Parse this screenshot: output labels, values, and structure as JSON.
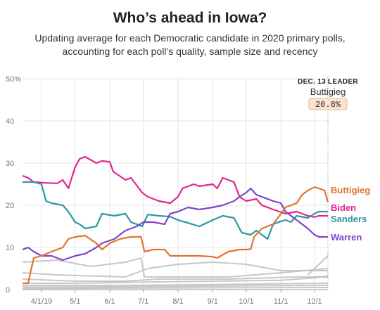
{
  "title": "Who’s ahead in Iowa?",
  "subtitle": "Updating average for each Democratic candidate in 2020 primary polls, accounting for each poll’s quality, sample size and recency",
  "leader": {
    "heading": "DEC. 13 LEADER",
    "name": "Buttigieg",
    "value": "20.8%"
  },
  "colors": {
    "Buttigieg": "#e1742f",
    "Biden": "#e1258e",
    "Sanders": "#2b98a3",
    "Warren": "#7b46c9",
    "others": "#bdbdbd",
    "grid": "#e4e4e4",
    "leader_box": "#fbe2d1"
  },
  "chart_data": {
    "type": "line",
    "x_axis": {
      "min": "2019-03-15",
      "max": "2019-12-13",
      "tick_dates": [
        "2019-04-01",
        "2019-05-01",
        "2019-06-01",
        "2019-07-01",
        "2019-08-01",
        "2019-09-01",
        "2019-10-01",
        "2019-11-01",
        "2019-12-01"
      ],
      "tick_labels": [
        "4/1/19",
        "5/1",
        "6/1",
        "7/1",
        "8/1",
        "9/1",
        "10/1",
        "11/1",
        "12/1"
      ]
    },
    "y_axis": {
      "min": 0,
      "max": 50,
      "ticks": [
        0,
        10,
        20,
        30,
        40,
        50
      ],
      "tick_labels": [
        "0",
        "10",
        "20",
        "30",
        "40",
        "50%"
      ]
    },
    "grid": true,
    "series": [
      {
        "name": "Biden",
        "points": [
          [
            "2019-03-15",
            27
          ],
          [
            "2019-03-20",
            26.5
          ],
          [
            "2019-03-25",
            25.5
          ],
          [
            "2019-04-05",
            25.3
          ],
          [
            "2019-04-15",
            25.2
          ],
          [
            "2019-04-20",
            26
          ],
          [
            "2019-04-25",
            24
          ],
          [
            "2019-05-01",
            29
          ],
          [
            "2019-05-05",
            31
          ],
          [
            "2019-05-10",
            31.5
          ],
          [
            "2019-05-20",
            30
          ],
          [
            "2019-05-25",
            30.5
          ],
          [
            "2019-06-01",
            30.3
          ],
          [
            "2019-06-04",
            28
          ],
          [
            "2019-06-15",
            26
          ],
          [
            "2019-06-20",
            26.5
          ],
          [
            "2019-06-30",
            23
          ],
          [
            "2019-07-05",
            22
          ],
          [
            "2019-07-15",
            21
          ],
          [
            "2019-07-25",
            20.5
          ],
          [
            "2019-08-01",
            22
          ],
          [
            "2019-08-05",
            24
          ],
          [
            "2019-08-15",
            25
          ],
          [
            "2019-08-20",
            24.5
          ],
          [
            "2019-09-01",
            25
          ],
          [
            "2019-09-05",
            24
          ],
          [
            "2019-09-10",
            26.5
          ],
          [
            "2019-09-20",
            25.5
          ],
          [
            "2019-09-25",
            22
          ],
          [
            "2019-10-01",
            21
          ],
          [
            "2019-10-10",
            21.5
          ],
          [
            "2019-10-15",
            20
          ],
          [
            "2019-10-25",
            19
          ],
          [
            "2019-11-05",
            18
          ],
          [
            "2019-11-15",
            18.5
          ],
          [
            "2019-11-25",
            17.5
          ],
          [
            "2019-12-01",
            17.2
          ],
          [
            "2019-12-05",
            17.5
          ],
          [
            "2019-12-13",
            17.5
          ]
        ]
      },
      {
        "name": "Sanders",
        "points": [
          [
            "2019-03-15",
            25.5
          ],
          [
            "2019-03-25",
            25.5
          ],
          [
            "2019-04-01",
            25
          ],
          [
            "2019-04-05",
            21
          ],
          [
            "2019-04-10",
            20.5
          ],
          [
            "2019-04-20",
            20
          ],
          [
            "2019-04-25",
            18.5
          ],
          [
            "2019-05-01",
            16
          ],
          [
            "2019-05-05",
            15.5
          ],
          [
            "2019-05-10",
            14.5
          ],
          [
            "2019-05-20",
            15
          ],
          [
            "2019-05-25",
            18
          ],
          [
            "2019-06-05",
            17.5
          ],
          [
            "2019-06-15",
            18
          ],
          [
            "2019-06-20",
            16
          ],
          [
            "2019-06-30",
            15
          ],
          [
            "2019-07-05",
            17.8
          ],
          [
            "2019-07-15",
            17.5
          ],
          [
            "2019-07-25",
            17.3
          ],
          [
            "2019-08-01",
            16.5
          ],
          [
            "2019-08-10",
            15.8
          ],
          [
            "2019-08-20",
            15
          ],
          [
            "2019-09-01",
            16.5
          ],
          [
            "2019-09-10",
            17.5
          ],
          [
            "2019-09-20",
            17
          ],
          [
            "2019-09-27",
            13.5
          ],
          [
            "2019-10-05",
            13
          ],
          [
            "2019-10-10",
            14
          ],
          [
            "2019-10-15",
            13
          ],
          [
            "2019-10-20",
            12
          ],
          [
            "2019-10-25",
            15.5
          ],
          [
            "2019-11-01",
            16.2
          ],
          [
            "2019-11-05",
            16.5
          ],
          [
            "2019-11-10",
            16
          ],
          [
            "2019-11-15",
            17.5
          ],
          [
            "2019-11-25",
            17
          ],
          [
            "2019-12-01",
            18
          ],
          [
            "2019-12-05",
            18.5
          ],
          [
            "2019-12-13",
            18.5
          ]
        ]
      },
      {
        "name": "Warren",
        "points": [
          [
            "2019-03-15",
            9.5
          ],
          [
            "2019-03-20",
            10
          ],
          [
            "2019-03-25",
            9
          ],
          [
            "2019-04-01",
            8
          ],
          [
            "2019-04-10",
            8
          ],
          [
            "2019-04-20",
            7
          ],
          [
            "2019-05-01",
            8
          ],
          [
            "2019-05-10",
            8.5
          ],
          [
            "2019-05-20",
            10
          ],
          [
            "2019-05-25",
            11
          ],
          [
            "2019-06-05",
            12
          ],
          [
            "2019-06-15",
            14
          ],
          [
            "2019-06-25",
            15
          ],
          [
            "2019-07-01",
            16
          ],
          [
            "2019-07-10",
            16
          ],
          [
            "2019-07-20",
            15.5
          ],
          [
            "2019-07-25",
            18
          ],
          [
            "2019-08-01",
            18.5
          ],
          [
            "2019-08-10",
            19.5
          ],
          [
            "2019-08-20",
            19
          ],
          [
            "2019-09-01",
            19.5
          ],
          [
            "2019-09-10",
            20
          ],
          [
            "2019-09-20",
            21
          ],
          [
            "2019-09-25",
            22
          ],
          [
            "2019-10-01",
            23
          ],
          [
            "2019-10-05",
            24
          ],
          [
            "2019-10-10",
            22.5
          ],
          [
            "2019-10-15",
            22
          ],
          [
            "2019-10-25",
            21
          ],
          [
            "2019-11-01",
            20.5
          ],
          [
            "2019-11-05",
            18.5
          ],
          [
            "2019-11-15",
            16.5
          ],
          [
            "2019-11-25",
            14.5
          ],
          [
            "2019-12-01",
            13
          ],
          [
            "2019-12-05",
            12.5
          ],
          [
            "2019-12-13",
            12.5
          ]
        ]
      },
      {
        "name": "Buttigieg",
        "points": [
          [
            "2019-03-15",
            1.5
          ],
          [
            "2019-03-20",
            1.5
          ],
          [
            "2019-03-25",
            7.5
          ],
          [
            "2019-04-01",
            8
          ],
          [
            "2019-04-10",
            9
          ],
          [
            "2019-04-20",
            10
          ],
          [
            "2019-04-25",
            12
          ],
          [
            "2019-05-01",
            12.5
          ],
          [
            "2019-05-10",
            12.8
          ],
          [
            "2019-05-20",
            11
          ],
          [
            "2019-05-25",
            9.5
          ],
          [
            "2019-06-01",
            11
          ],
          [
            "2019-06-10",
            12
          ],
          [
            "2019-06-20",
            12.5
          ],
          [
            "2019-06-29",
            12.5
          ],
          [
            "2019-07-02",
            9
          ],
          [
            "2019-07-10",
            9.5
          ],
          [
            "2019-07-20",
            9.5
          ],
          [
            "2019-07-25",
            8
          ],
          [
            "2019-08-10",
            8
          ],
          [
            "2019-08-20",
            8
          ],
          [
            "2019-09-01",
            7.8
          ],
          [
            "2019-09-05",
            7.5
          ],
          [
            "2019-09-15",
            9
          ],
          [
            "2019-09-25",
            9.5
          ],
          [
            "2019-10-01",
            9.5
          ],
          [
            "2019-10-05",
            9.6
          ],
          [
            "2019-10-08",
            12.5
          ],
          [
            "2019-10-15",
            14.5
          ],
          [
            "2019-10-25",
            15.5
          ],
          [
            "2019-11-01",
            18
          ],
          [
            "2019-11-05",
            19.5
          ],
          [
            "2019-11-15",
            20.5
          ],
          [
            "2019-11-20",
            22.5
          ],
          [
            "2019-11-25",
            23.5
          ],
          [
            "2019-12-01",
            24.3
          ],
          [
            "2019-12-05",
            24
          ],
          [
            "2019-12-10",
            23.5
          ],
          [
            "2019-12-13",
            20.8
          ]
        ]
      }
    ],
    "labels": {
      "Buttigieg": "Buttigieg",
      "Biden": "Biden",
      "Sanders": "Sanders",
      "Warren": "Warren"
    },
    "other_candidates": [
      [
        [
          "2019-03-15",
          6.5
        ],
        [
          "2019-04-15",
          7
        ],
        [
          "2019-05-15",
          5.5
        ],
        [
          "2019-06-15",
          6.5
        ],
        [
          "2019-06-29",
          7.5
        ],
        [
          "2019-07-02",
          3
        ],
        [
          "2019-08-01",
          3
        ],
        [
          "2019-09-15",
          3
        ],
        [
          "2019-11-01",
          4
        ],
        [
          "2019-12-13",
          5
        ]
      ],
      [
        [
          "2019-03-15",
          4
        ],
        [
          "2019-04-15",
          3.5
        ],
        [
          "2019-06-15",
          3
        ],
        [
          "2019-07-05",
          5
        ],
        [
          "2019-08-01",
          6
        ],
        [
          "2019-09-01",
          6.5
        ],
        [
          "2019-10-01",
          6
        ],
        [
          "2019-11-01",
          4.5
        ],
        [
          "2019-12-13",
          4.5
        ]
      ],
      [
        [
          "2019-03-15",
          2.5
        ],
        [
          "2019-05-01",
          2
        ],
        [
          "2019-06-15",
          2
        ],
        [
          "2019-07-15",
          2.5
        ],
        [
          "2019-09-15",
          2.5
        ],
        [
          "2019-11-15",
          3
        ],
        [
          "2019-12-13",
          3
        ]
      ],
      [
        [
          "2019-03-15",
          1.5
        ],
        [
          "2019-05-01",
          1.5
        ],
        [
          "2019-07-01",
          1.8
        ],
        [
          "2019-09-01",
          2
        ],
        [
          "2019-11-01",
          2.2
        ],
        [
          "2019-12-01",
          2.8
        ],
        [
          "2019-12-13",
          3.2
        ]
      ],
      [
        [
          "2019-03-15",
          1
        ],
        [
          "2019-06-01",
          1
        ],
        [
          "2019-09-01",
          1.2
        ],
        [
          "2019-12-13",
          1.5
        ]
      ],
      [
        [
          "2019-03-15",
          0.6
        ],
        [
          "2019-07-01",
          0.7
        ],
        [
          "2019-10-01",
          0.9
        ],
        [
          "2019-12-13",
          1
        ]
      ],
      [
        [
          "2019-03-15",
          0.3
        ],
        [
          "2019-08-01",
          0.4
        ],
        [
          "2019-12-13",
          0.5
        ]
      ],
      [
        [
          "2019-11-25",
          3.5
        ],
        [
          "2019-12-05",
          6
        ],
        [
          "2019-12-13",
          8
        ]
      ]
    ]
  }
}
